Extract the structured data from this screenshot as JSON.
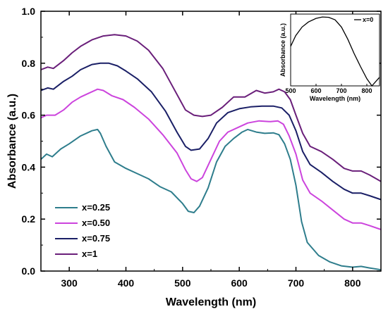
{
  "chart_data": [
    {
      "id": "main",
      "type": "line",
      "title": "",
      "xlabel": "Wavelength (nm)",
      "ylabel": "Absorbance (a.u.)",
      "xlim": [
        250,
        850
      ],
      "ylim": [
        0.0,
        1.0
      ],
      "xticks": [
        300,
        400,
        500,
        600,
        700,
        800
      ],
      "yticks": [
        0.0,
        0.2,
        0.4,
        0.6,
        0.8,
        1.0
      ],
      "xtick_labels": [
        "300",
        "400",
        "500",
        "600",
        "700",
        "800"
      ],
      "ytick_labels": [
        "0.0",
        "0.2",
        "0.4",
        "0.6",
        "0.8",
        "1.0"
      ],
      "legend_position": "bottom-left",
      "grid": false,
      "series": [
        {
          "name": "x=0.25",
          "color": "#2e7d8c",
          "points": [
            [
              250,
              0.43
            ],
            [
              260,
              0.45
            ],
            [
              270,
              0.44
            ],
            [
              285,
              0.47
            ],
            [
              300,
              0.49
            ],
            [
              320,
              0.52
            ],
            [
              340,
              0.54
            ],
            [
              350,
              0.545
            ],
            [
              355,
              0.53
            ],
            [
              365,
              0.48
            ],
            [
              380,
              0.42
            ],
            [
              400,
              0.395
            ],
            [
              420,
              0.375
            ],
            [
              440,
              0.355
            ],
            [
              460,
              0.325
            ],
            [
              480,
              0.305
            ],
            [
              500,
              0.26
            ],
            [
              510,
              0.23
            ],
            [
              520,
              0.225
            ],
            [
              530,
              0.25
            ],
            [
              545,
              0.32
            ],
            [
              560,
              0.42
            ],
            [
              575,
              0.48
            ],
            [
              590,
              0.51
            ],
            [
              605,
              0.535
            ],
            [
              615,
              0.545
            ],
            [
              630,
              0.535
            ],
            [
              645,
              0.53
            ],
            [
              660,
              0.532
            ],
            [
              670,
              0.525
            ],
            [
              680,
              0.49
            ],
            [
              690,
              0.43
            ],
            [
              700,
              0.33
            ],
            [
              710,
              0.19
            ],
            [
              720,
              0.11
            ],
            [
              740,
              0.06
            ],
            [
              760,
              0.035
            ],
            [
              780,
              0.02
            ],
            [
              800,
              0.015
            ],
            [
              815,
              0.018
            ],
            [
              830,
              0.012
            ],
            [
              850,
              0.005
            ]
          ]
        },
        {
          "name": "x=0.50",
          "color": "#cc44dd",
          "points": [
            [
              250,
              0.59
            ],
            [
              260,
              0.6
            ],
            [
              275,
              0.6
            ],
            [
              290,
              0.62
            ],
            [
              305,
              0.65
            ],
            [
              320,
              0.67
            ],
            [
              335,
              0.685
            ],
            [
              350,
              0.7
            ],
            [
              360,
              0.695
            ],
            [
              375,
              0.675
            ],
            [
              395,
              0.66
            ],
            [
              415,
              0.63
            ],
            [
              440,
              0.585
            ],
            [
              465,
              0.525
            ],
            [
              490,
              0.455
            ],
            [
              505,
              0.39
            ],
            [
              515,
              0.355
            ],
            [
              525,
              0.345
            ],
            [
              535,
              0.36
            ],
            [
              550,
              0.43
            ],
            [
              565,
              0.5
            ],
            [
              580,
              0.535
            ],
            [
              600,
              0.555
            ],
            [
              615,
              0.57
            ],
            [
              635,
              0.578
            ],
            [
              655,
              0.575
            ],
            [
              668,
              0.578
            ],
            [
              678,
              0.565
            ],
            [
              688,
              0.52
            ],
            [
              700,
              0.45
            ],
            [
              712,
              0.35
            ],
            [
              725,
              0.3
            ],
            [
              745,
              0.27
            ],
            [
              765,
              0.235
            ],
            [
              785,
              0.2
            ],
            [
              800,
              0.185
            ],
            [
              815,
              0.185
            ],
            [
              830,
              0.175
            ],
            [
              850,
              0.16
            ]
          ]
        },
        {
          "name": "x=0.75",
          "color": "#1a1f66",
          "points": [
            [
              250,
              0.695
            ],
            [
              262,
              0.705
            ],
            [
              272,
              0.7
            ],
            [
              290,
              0.73
            ],
            [
              305,
              0.75
            ],
            [
              320,
              0.775
            ],
            [
              340,
              0.795
            ],
            [
              355,
              0.8
            ],
            [
              370,
              0.8
            ],
            [
              385,
              0.79
            ],
            [
              400,
              0.77
            ],
            [
              420,
              0.74
            ],
            [
              445,
              0.69
            ],
            [
              470,
              0.615
            ],
            [
              490,
              0.535
            ],
            [
              505,
              0.48
            ],
            [
              515,
              0.465
            ],
            [
              530,
              0.47
            ],
            [
              545,
              0.51
            ],
            [
              560,
              0.57
            ],
            [
              580,
              0.61
            ],
            [
              600,
              0.625
            ],
            [
              620,
              0.632
            ],
            [
              640,
              0.635
            ],
            [
              660,
              0.635
            ],
            [
              675,
              0.628
            ],
            [
              688,
              0.6
            ],
            [
              700,
              0.54
            ],
            [
              712,
              0.46
            ],
            [
              725,
              0.41
            ],
            [
              745,
              0.38
            ],
            [
              765,
              0.345
            ],
            [
              785,
              0.315
            ],
            [
              800,
              0.3
            ],
            [
              815,
              0.3
            ],
            [
              830,
              0.29
            ],
            [
              850,
              0.275
            ]
          ]
        },
        {
          "name": "x=1",
          "color": "#6a1f7a",
          "points": [
            [
              250,
              0.775
            ],
            [
              262,
              0.785
            ],
            [
              272,
              0.78
            ],
            [
              290,
              0.81
            ],
            [
              305,
              0.84
            ],
            [
              320,
              0.865
            ],
            [
              340,
              0.89
            ],
            [
              360,
              0.905
            ],
            [
              380,
              0.91
            ],
            [
              400,
              0.905
            ],
            [
              420,
              0.885
            ],
            [
              440,
              0.85
            ],
            [
              465,
              0.78
            ],
            [
              485,
              0.7
            ],
            [
              505,
              0.62
            ],
            [
              520,
              0.6
            ],
            [
              535,
              0.595
            ],
            [
              550,
              0.6
            ],
            [
              570,
              0.63
            ],
            [
              590,
              0.67
            ],
            [
              610,
              0.67
            ],
            [
              630,
              0.695
            ],
            [
              645,
              0.685
            ],
            [
              660,
              0.69
            ],
            [
              670,
              0.7
            ],
            [
              680,
              0.69
            ],
            [
              690,
              0.66
            ],
            [
              700,
              0.6
            ],
            [
              712,
              0.53
            ],
            [
              725,
              0.48
            ],
            [
              745,
              0.46
            ],
            [
              765,
              0.43
            ],
            [
              785,
              0.395
            ],
            [
              800,
              0.385
            ],
            [
              815,
              0.385
            ],
            [
              830,
              0.37
            ],
            [
              850,
              0.345
            ]
          ]
        }
      ]
    },
    {
      "id": "inset",
      "type": "line",
      "title": "",
      "xlabel": "Wavelength (nm)",
      "ylabel": "Absorbance (a.u.)",
      "xlim": [
        500,
        850
      ],
      "xticks": [
        500,
        600,
        700,
        800
      ],
      "xtick_labels": [
        "500",
        "600",
        "700",
        "800"
      ],
      "legend_position": "top-right",
      "series": [
        {
          "name": "x=0",
          "color": "#000000",
          "points": [
            [
              500,
              0.55
            ],
            [
              520,
              0.7
            ],
            [
              545,
              0.82
            ],
            [
              570,
              0.89
            ],
            [
              600,
              0.94
            ],
            [
              625,
              0.96
            ],
            [
              650,
              0.955
            ],
            [
              675,
              0.92
            ],
            [
              700,
              0.82
            ],
            [
              725,
              0.65
            ],
            [
              750,
              0.45
            ],
            [
              775,
              0.27
            ],
            [
              800,
              0.1
            ],
            [
              820,
              0.0
            ],
            [
              840,
              0.08
            ],
            [
              850,
              0.12
            ]
          ]
        }
      ]
    }
  ]
}
